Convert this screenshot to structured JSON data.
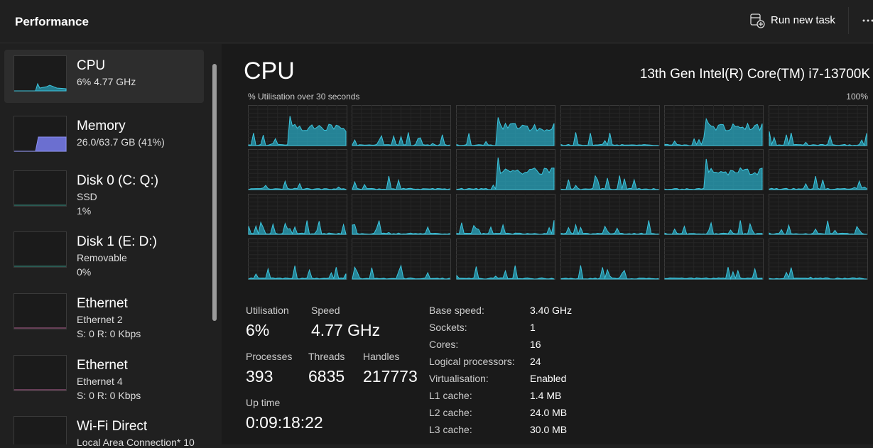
{
  "header": {
    "title": "Performance",
    "run_new_task": "Run new task"
  },
  "sidebar": {
    "items": [
      {
        "name": "CPU",
        "lines": [
          "6%  4.77 GHz"
        ]
      },
      {
        "name": "Memory",
        "lines": [
          "26.0/63.7 GB (41%)"
        ]
      },
      {
        "name": "Disk 0 (C: Q:)",
        "lines": [
          "SSD",
          "1%"
        ]
      },
      {
        "name": "Disk 1 (E: D:)",
        "lines": [
          "Removable",
          "0%"
        ]
      },
      {
        "name": "Ethernet",
        "lines": [
          "Ethernet 2",
          "S: 0 R: 0 Kbps"
        ]
      },
      {
        "name": "Ethernet",
        "lines": [
          "Ethernet 4",
          "S: 0 R: 0 Kbps"
        ]
      },
      {
        "name": "Wi-Fi Direct",
        "lines": [
          "Local Area Connection* 10"
        ]
      }
    ]
  },
  "main": {
    "title": "CPU",
    "processor": "13th Gen Intel(R) Core(TM) i7-13700K",
    "graph_label": "% Utilisation over 30 seconds",
    "graph_max": "100%",
    "stats": [
      {
        "label": "Utilisation",
        "value": "6%"
      },
      {
        "label": "Speed",
        "value": "4.77 GHz"
      },
      {
        "label": "Processes",
        "value": "393"
      },
      {
        "label": "Threads",
        "value": "6835"
      },
      {
        "label": "Handles",
        "value": "217773"
      },
      {
        "label": "Up time",
        "value": "0:09:18:22"
      }
    ],
    "details": [
      {
        "label": "Base speed:",
        "value": "3.40 GHz"
      },
      {
        "label": "Sockets:",
        "value": "1"
      },
      {
        "label": "Cores:",
        "value": "16"
      },
      {
        "label": "Logical processors:",
        "value": "24"
      },
      {
        "label": "Virtualisation:",
        "value": "Enabled"
      },
      {
        "label": "L1 cache:",
        "value": "1.4 MB"
      },
      {
        "label": "L2 cache:",
        "value": "24.0 MB"
      },
      {
        "label": "L3 cache:",
        "value": "30.0 MB"
      }
    ]
  }
}
